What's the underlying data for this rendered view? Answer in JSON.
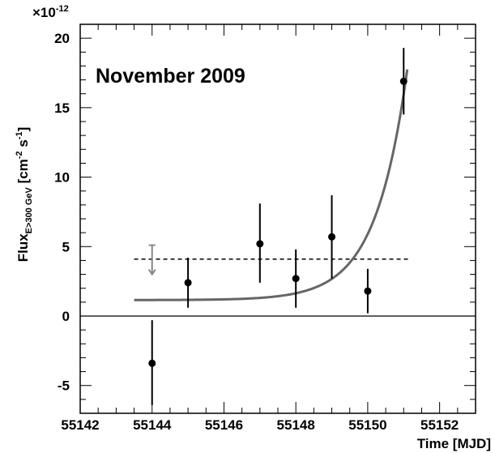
{
  "chart_data": {
    "type": "scatter",
    "title": "November 2009",
    "xlabel": "Time [MJD]",
    "ylabel_main": "Flux",
    "ylabel_sub": "E>300 GeV",
    "ylabel_units": "[cm",
    "ylabel_sup1": "-2",
    "ylabel_units2": " s",
    "ylabel_sup2": "-1",
    "ylabel_close": "]",
    "exponent_base": "×10",
    "exponent_power": "-12",
    "xlim": [
      55142,
      55153
    ],
    "ylim": [
      -7,
      21
    ],
    "x_ticks": [
      "55142",
      "55144",
      "55146",
      "55148",
      "55150",
      "55152"
    ],
    "y_ticks": [
      "-5",
      "0",
      "5",
      "10",
      "15",
      "20"
    ],
    "points": [
      {
        "x": 55144,
        "y": -3.4,
        "yerr_low": 3.0,
        "yerr_high": 3.1
      },
      {
        "x": 55145,
        "y": 2.4,
        "yerr_low": 1.8,
        "yerr_high": 1.8
      },
      {
        "x": 55147,
        "y": 5.2,
        "yerr_low": 2.8,
        "yerr_high": 2.9
      },
      {
        "x": 55148,
        "y": 2.7,
        "yerr_low": 2.1,
        "yerr_high": 2.1
      },
      {
        "x": 55149,
        "y": 5.7,
        "yerr_low": 3.0,
        "yerr_high": 3.0
      },
      {
        "x": 55150,
        "y": 1.8,
        "yerr_low": 1.6,
        "yerr_high": 1.6
      },
      {
        "x": 55151,
        "y": 16.9,
        "yerr_low": 2.4,
        "yerr_high": 2.4
      }
    ],
    "mean_level": {
      "y": 4.1,
      "x_start": 55143.5,
      "x_end": 55151.2
    },
    "upper_limit": {
      "x": 55144,
      "y": 5.1,
      "arrow_to": 3.0
    },
    "exponential_fit": {
      "x_start": 55143.5,
      "x_end": 55151.1,
      "baseline": 1.15,
      "amplitude": 16.6,
      "tau": 0.88
    },
    "colors": {
      "points": "#000000",
      "fit": "#666666",
      "upper_limit": "#888888"
    }
  }
}
